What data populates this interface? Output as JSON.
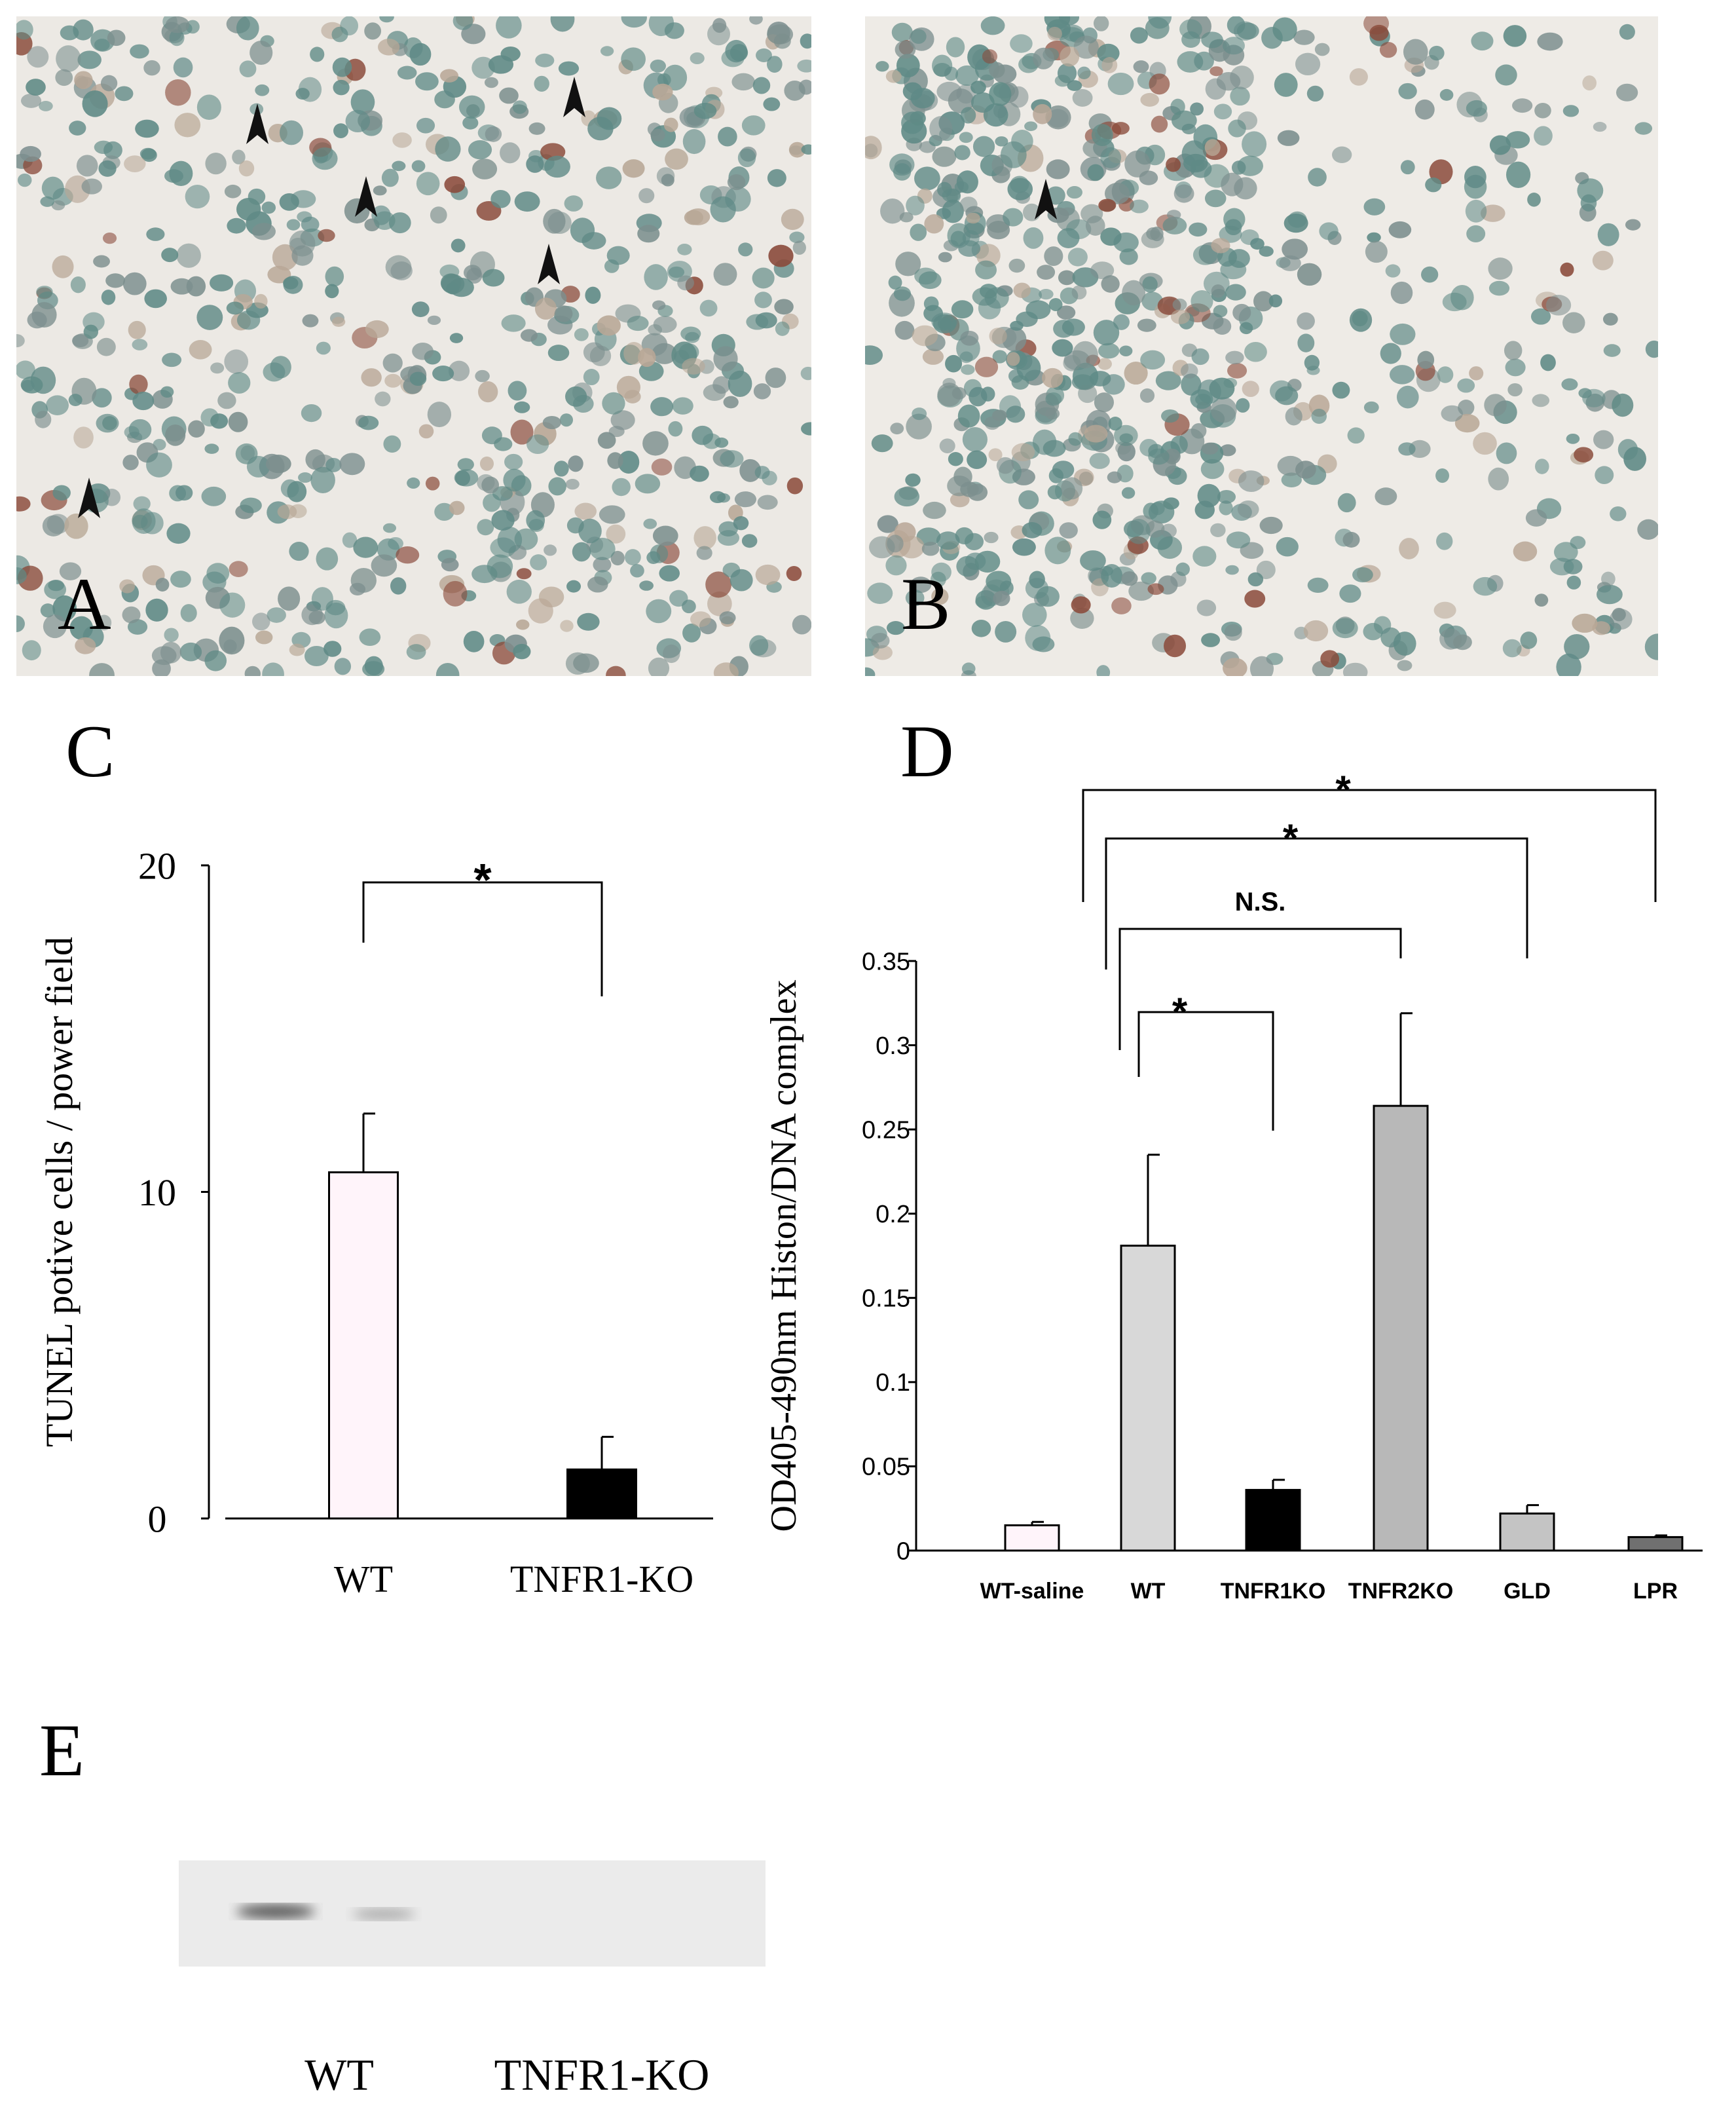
{
  "panels": [
    "A",
    "B",
    "E"
  ],
  "blot": {
    "lanes": [
      "WT",
      "TNFR1-KO"
    ]
  },
  "chart_data": [
    {
      "type": "bar",
      "title": "C",
      "y_label": "TUNEL potive cells / power field",
      "categories": [
        "WT",
        "TNFR1-KO"
      ],
      "values": [
        10.6,
        1.5
      ],
      "errors": [
        1.8,
        1.0
      ],
      "colors": [
        "#fff4fa",
        "#000000"
      ],
      "ylim": [
        0,
        20
      ],
      "yticks": [
        0,
        10,
        20
      ],
      "comparisons": [
        {
          "between": [
            0,
            1
          ],
          "label": "*"
        }
      ]
    },
    {
      "type": "bar",
      "title": "D",
      "y_label": "OD405-490nm Histon/DNA complex",
      "categories": [
        "WT-saline",
        "WT",
        "TNFR1KO",
        "TNFR2KO",
        "GLD",
        "LPR"
      ],
      "values": [
        0.015,
        0.181,
        0.036,
        0.264,
        0.022,
        0.008
      ],
      "errors": [
        0.002,
        0.054,
        0.006,
        0.055,
        0.005,
        0.001
      ],
      "colors": [
        "#fff4fa",
        "#d8d8d8",
        "#000000",
        "#b8b8b8",
        "#c4c4c4",
        "#707070"
      ],
      "ylim": [
        0,
        0.35
      ],
      "yticks": [
        0,
        0.05,
        0.1,
        0.15,
        0.2,
        0.25,
        0.3,
        0.35
      ],
      "comparisons": [
        {
          "between": [
            1,
            2
          ],
          "label": "*"
        },
        {
          "between": [
            1,
            3
          ],
          "label": "N.S."
        },
        {
          "between": [
            1,
            4
          ],
          "label": "*"
        },
        {
          "between": [
            1,
            5
          ],
          "label": "*"
        }
      ]
    }
  ]
}
